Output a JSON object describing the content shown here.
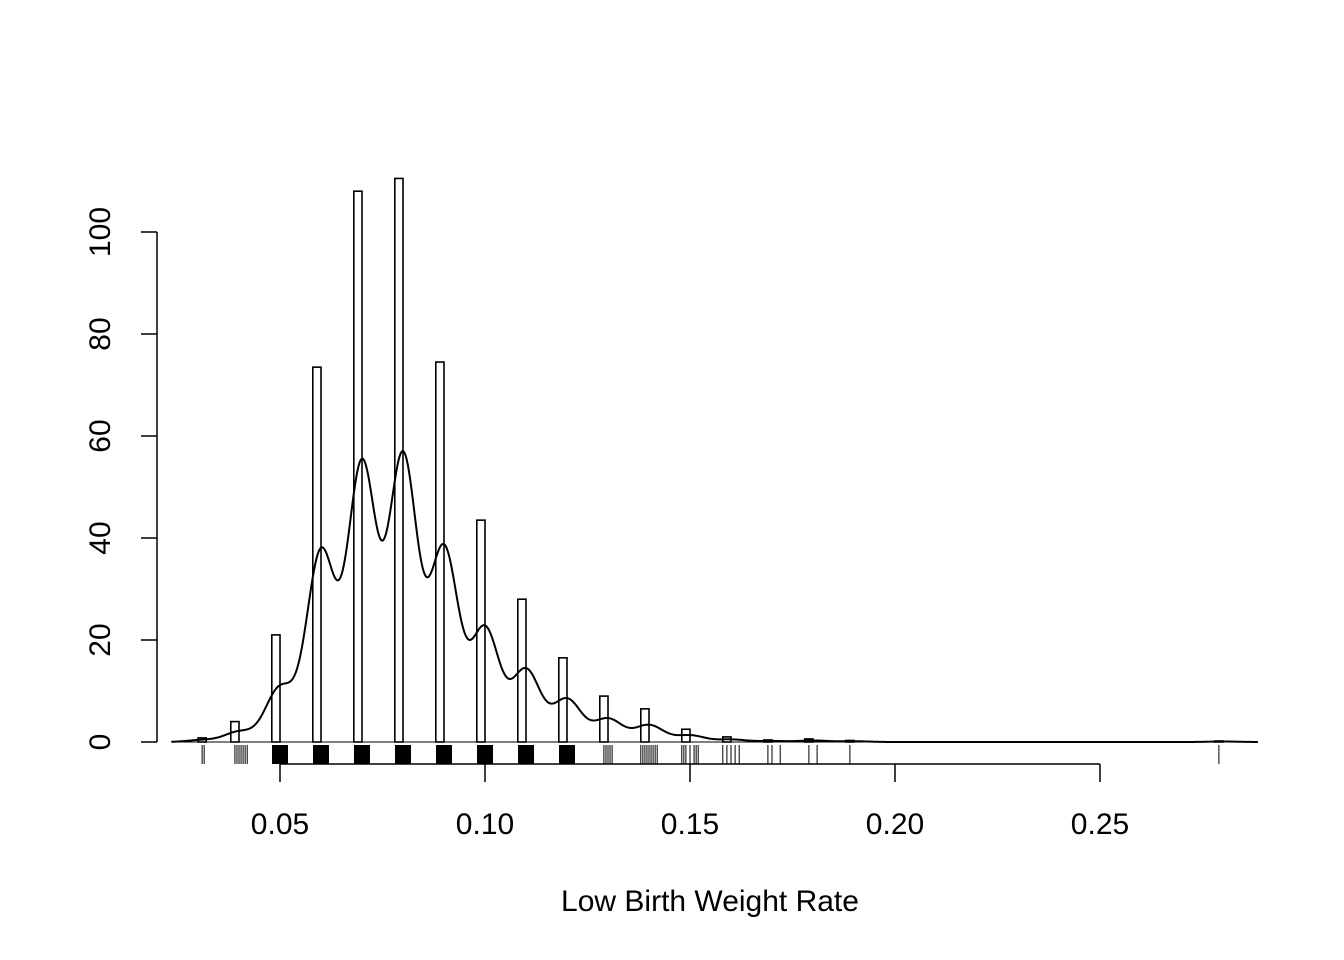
{
  "chart_data": {
    "type": "bar",
    "title": "",
    "xlabel": "Low Birth Weight Rate",
    "ylabel": "",
    "xlim": [
      0.02,
      0.29
    ],
    "ylim": [
      0,
      110
    ],
    "x_ticks": [
      {
        "value": 0.05,
        "label": "0.05"
      },
      {
        "value": 0.1,
        "label": "0.10"
      },
      {
        "value": 0.15,
        "label": "0.15"
      },
      {
        "value": 0.2,
        "label": "0.20"
      },
      {
        "value": 0.25,
        "label": "0.25"
      }
    ],
    "y_ticks": [
      {
        "value": 0,
        "label": "0"
      },
      {
        "value": 20,
        "label": "20"
      },
      {
        "value": 40,
        "label": "40"
      },
      {
        "value": 60,
        "label": "60"
      },
      {
        "value": 80,
        "label": "80"
      },
      {
        "value": 100,
        "label": "100"
      }
    ],
    "bin_width": 0.002,
    "bars": [
      {
        "x": 0.031,
        "value": 0.8
      },
      {
        "x": 0.039,
        "value": 4
      },
      {
        "x": 0.049,
        "value": 21
      },
      {
        "x": 0.059,
        "value": 73.5
      },
      {
        "x": 0.069,
        "value": 108
      },
      {
        "x": 0.079,
        "value": 110.5
      },
      {
        "x": 0.089,
        "value": 74.5
      },
      {
        "x": 0.099,
        "value": 43.5
      },
      {
        "x": 0.109,
        "value": 28
      },
      {
        "x": 0.119,
        "value": 16.5
      },
      {
        "x": 0.129,
        "value": 9
      },
      {
        "x": 0.139,
        "value": 6.5
      },
      {
        "x": 0.149,
        "value": 2.5
      },
      {
        "x": 0.159,
        "value": 1
      },
      {
        "x": 0.169,
        "value": 0.4
      },
      {
        "x": 0.179,
        "value": 0.6
      },
      {
        "x": 0.189,
        "value": 0.3
      },
      {
        "x": 0.279,
        "value": 0.2
      }
    ],
    "density_curve": {
      "bandwidth": 0.0035,
      "components": [
        {
          "x": 0.031,
          "weight": 0.4
        },
        {
          "x": 0.04,
          "weight": 2
        },
        {
          "x": 0.05,
          "weight": 10.5
        },
        {
          "x": 0.06,
          "weight": 37
        },
        {
          "x": 0.07,
          "weight": 54
        },
        {
          "x": 0.08,
          "weight": 55.5
        },
        {
          "x": 0.09,
          "weight": 37.5
        },
        {
          "x": 0.1,
          "weight": 22
        },
        {
          "x": 0.11,
          "weight": 14
        },
        {
          "x": 0.12,
          "weight": 8.3
        },
        {
          "x": 0.13,
          "weight": 4.5
        },
        {
          "x": 0.14,
          "weight": 3.3
        },
        {
          "x": 0.15,
          "weight": 1.3
        },
        {
          "x": 0.16,
          "weight": 0.5
        },
        {
          "x": 0.17,
          "weight": 0.2
        },
        {
          "x": 0.18,
          "weight": 0.3
        },
        {
          "x": 0.19,
          "weight": 0.15
        },
        {
          "x": 0.28,
          "weight": 0.1
        }
      ]
    },
    "rug": {
      "heavy_clusters": [
        0.05,
        0.06,
        0.07,
        0.08,
        0.09,
        0.1,
        0.11,
        0.12
      ],
      "ticks": [
        0.031,
        0.0315,
        0.039,
        0.0395,
        0.04,
        0.0405,
        0.041,
        0.0415,
        0.042,
        0.129,
        0.1295,
        0.13,
        0.1305,
        0.131,
        0.138,
        0.1385,
        0.139,
        0.1395,
        0.14,
        0.1405,
        0.141,
        0.1415,
        0.142,
        0.148,
        0.1485,
        0.149,
        0.15,
        0.151,
        0.1515,
        0.152,
        0.158,
        0.159,
        0.16,
        0.161,
        0.162,
        0.169,
        0.17,
        0.172,
        0.179,
        0.181,
        0.189,
        0.279
      ]
    },
    "grid": false,
    "legend": "none"
  }
}
